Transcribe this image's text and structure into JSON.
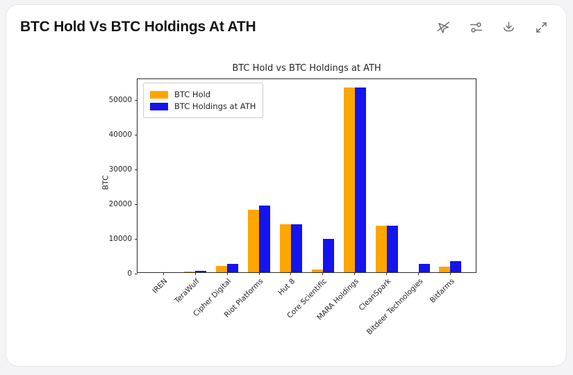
{
  "header": {
    "title": "BTC Hold Vs BTC Holdings At ATH",
    "toolbar_icons": [
      "pointer-off",
      "sliders",
      "download",
      "expand"
    ]
  },
  "chart_data": {
    "type": "bar",
    "title": "BTC Hold vs BTC Holdings at ATH",
    "xlabel": "",
    "ylabel": "BTC",
    "categories": [
      "IREN",
      "TeraWulf",
      "Cipher Digital",
      "Riot Platforms",
      "Hut 8",
      "Core Scientific",
      "MARA Holdings",
      "CleanSpark",
      "Bitdeer Technologies",
      "Bitfarms"
    ],
    "series": [
      {
        "name": "BTC Hold",
        "color": "#FFA500",
        "values": [
          0,
          150,
          1800,
          18000,
          13800,
          900,
          53200,
          13500,
          0,
          1600
        ]
      },
      {
        "name": "BTC Holdings at ATH",
        "color": "#1414F0",
        "values": [
          0,
          450,
          2500,
          19300,
          13800,
          9700,
          53200,
          13500,
          2500,
          3200
        ]
      }
    ],
    "ylim": [
      0,
      56000
    ],
    "yticks": [
      0,
      10000,
      20000,
      30000,
      40000,
      50000
    ],
    "legend_position": "upper left",
    "grid": false,
    "xtick_rotation": 45
  }
}
